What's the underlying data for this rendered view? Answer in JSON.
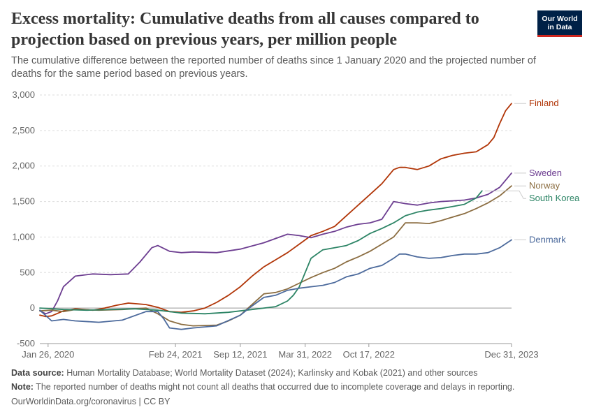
{
  "header": {
    "title": "Excess mortality: Cumulative deaths from all causes compared to projection based on previous years, per million people",
    "subtitle": "The cumulative difference between the reported number of deaths since 1 January 2020 and the projected number of deaths for the same period based on previous years."
  },
  "logo": {
    "line1": "Our World",
    "line2": "in Data"
  },
  "footer": {
    "source_label": "Data source:",
    "source_text": "Human Mortality Database; World Mortality Dataset (2024); Karlinsky and Kobak (2021) and other sources",
    "note_label": "Note:",
    "note_text": "The reported number of deaths might not count all deaths that occurred due to incomplete coverage and delays in reporting.",
    "credit": "OurWorldinData.org/coronavirus | CC BY"
  },
  "colors": {
    "grid": "#dddddd",
    "axis": "#999999",
    "zero": "#999999"
  },
  "chart_data": {
    "type": "line",
    "title": "Excess mortality: Cumulative deaths from all causes compared to projection based on previous years, per million people",
    "xlabel": "",
    "ylabel": "",
    "xlim": [
      2020.0,
      2024.0
    ],
    "ylim": [
      -500,
      3000
    ],
    "yticks": [
      -500,
      0,
      500,
      1000,
      1500,
      2000,
      2500,
      3000
    ],
    "ytick_labels": [
      "-500",
      "0",
      "500",
      "1,000",
      "1,500",
      "2,000",
      "2,500",
      "3,000"
    ],
    "xticks": [
      2020.07,
      2021.15,
      2021.7,
      2022.25,
      2022.79,
      2024.0
    ],
    "xtick_labels": [
      "Jan 26, 2020",
      "Feb 24, 2021",
      "Sep 12, 2021",
      "Mar 31, 2022",
      "Oct 17, 2022",
      "Dec 31, 2023"
    ],
    "grid": true,
    "legend": "right",
    "series": [
      {
        "name": "Finland",
        "color": "#b13507",
        "x": [
          2020.0,
          2020.05,
          2020.1,
          2020.2,
          2020.3,
          2020.45,
          2020.55,
          2020.65,
          2020.75,
          2020.9,
          2021.0,
          2021.1,
          2021.2,
          2021.3,
          2021.4,
          2021.5,
          2021.6,
          2021.7,
          2021.8,
          2021.9,
          2022.0,
          2022.1,
          2022.2,
          2022.3,
          2022.4,
          2022.5,
          2022.6,
          2022.7,
          2022.8,
          2022.9,
          2023.0,
          2023.05,
          2023.1,
          2023.2,
          2023.3,
          2023.4,
          2023.5,
          2023.6,
          2023.7,
          2023.8,
          2023.85,
          2023.9,
          2023.95,
          2024.0
        ],
        "y": [
          -100,
          -120,
          -110,
          -40,
          -10,
          -30,
          0,
          40,
          70,
          50,
          10,
          -50,
          -60,
          -40,
          0,
          80,
          180,
          300,
          450,
          580,
          680,
          780,
          900,
          1020,
          1080,
          1150,
          1300,
          1450,
          1600,
          1750,
          1950,
          1980,
          1980,
          1950,
          2000,
          2100,
          2150,
          2180,
          2200,
          2300,
          2400,
          2600,
          2780,
          2880
        ]
      },
      {
        "name": "Sweden",
        "color": "#6d3e91",
        "x": [
          2020.0,
          2020.05,
          2020.1,
          2020.15,
          2020.2,
          2020.3,
          2020.45,
          2020.6,
          2020.75,
          2020.85,
          2020.95,
          2021.0,
          2021.1,
          2021.2,
          2021.3,
          2021.5,
          2021.7,
          2021.9,
          2022.0,
          2022.1,
          2022.2,
          2022.3,
          2022.4,
          2022.5,
          2022.6,
          2022.7,
          2022.8,
          2022.9,
          2023.0,
          2023.1,
          2023.2,
          2023.3,
          2023.4,
          2023.5,
          2023.6,
          2023.7,
          2023.8,
          2023.9,
          2024.0
        ],
        "y": [
          -40,
          -80,
          -50,
          100,
          300,
          450,
          480,
          470,
          480,
          650,
          850,
          880,
          800,
          780,
          790,
          780,
          830,
          920,
          980,
          1040,
          1020,
          990,
          1040,
          1080,
          1140,
          1180,
          1200,
          1250,
          1500,
          1470,
          1450,
          1480,
          1500,
          1510,
          1520,
          1550,
          1600,
          1700,
          1900
        ]
      },
      {
        "name": "Norway",
        "color": "#8b6d41",
        "x": [
          2020.0,
          2020.1,
          2020.2,
          2020.3,
          2020.5,
          2020.7,
          2020.9,
          2021.0,
          2021.1,
          2021.2,
          2021.3,
          2021.5,
          2021.6,
          2021.7,
          2021.8,
          2021.9,
          2022.0,
          2022.1,
          2022.2,
          2022.3,
          2022.4,
          2022.5,
          2022.6,
          2022.7,
          2022.8,
          2022.9,
          2023.0,
          2023.1,
          2023.2,
          2023.3,
          2023.4,
          2023.5,
          2023.6,
          2023.7,
          2023.8,
          2023.9,
          2024.0
        ],
        "y": [
          -40,
          -30,
          -50,
          -20,
          -30,
          -20,
          0,
          -80,
          -180,
          -230,
          -250,
          -240,
          -180,
          -100,
          50,
          200,
          220,
          270,
          350,
          430,
          500,
          560,
          650,
          720,
          800,
          900,
          1000,
          1200,
          1200,
          1190,
          1230,
          1280,
          1330,
          1400,
          1480,
          1580,
          1720
        ]
      },
      {
        "name": "South Korea",
        "color": "#2c8465",
        "x": [
          2020.0,
          2020.2,
          2020.4,
          2020.6,
          2020.8,
          2021.0,
          2021.2,
          2021.4,
          2021.6,
          2021.8,
          2022.0,
          2022.1,
          2022.15,
          2022.2,
          2022.25,
          2022.3,
          2022.4,
          2022.5,
          2022.6,
          2022.7,
          2022.8,
          2022.9,
          2023.0,
          2023.1,
          2023.2,
          2023.3,
          2023.4,
          2023.5,
          2023.6,
          2023.7,
          2023.75
        ],
        "y": [
          0,
          -20,
          -30,
          -20,
          -10,
          -30,
          -70,
          -80,
          -60,
          -20,
          20,
          100,
          180,
          300,
          500,
          700,
          820,
          850,
          880,
          950,
          1050,
          1120,
          1200,
          1300,
          1350,
          1380,
          1400,
          1430,
          1460,
          1550,
          1650
        ]
      },
      {
        "name": "Denmark",
        "color": "#4c6a9c",
        "x": [
          2020.0,
          2020.1,
          2020.2,
          2020.3,
          2020.5,
          2020.7,
          2020.9,
          2021.0,
          2021.05,
          2021.1,
          2021.2,
          2021.3,
          2021.5,
          2021.7,
          2021.8,
          2021.9,
          2022.0,
          2022.1,
          2022.2,
          2022.3,
          2022.4,
          2022.5,
          2022.6,
          2022.7,
          2022.8,
          2022.9,
          2023.0,
          2023.05,
          2023.1,
          2023.2,
          2023.3,
          2023.4,
          2023.5,
          2023.6,
          2023.7,
          2023.8,
          2023.9,
          2024.0
        ],
        "y": [
          -30,
          -180,
          -160,
          -180,
          -200,
          -170,
          -50,
          -50,
          -150,
          -280,
          -300,
          -280,
          -250,
          -100,
          30,
          150,
          180,
          250,
          280,
          300,
          320,
          360,
          440,
          480,
          560,
          600,
          700,
          760,
          760,
          720,
          700,
          710,
          740,
          760,
          760,
          780,
          850,
          960
        ]
      }
    ]
  }
}
